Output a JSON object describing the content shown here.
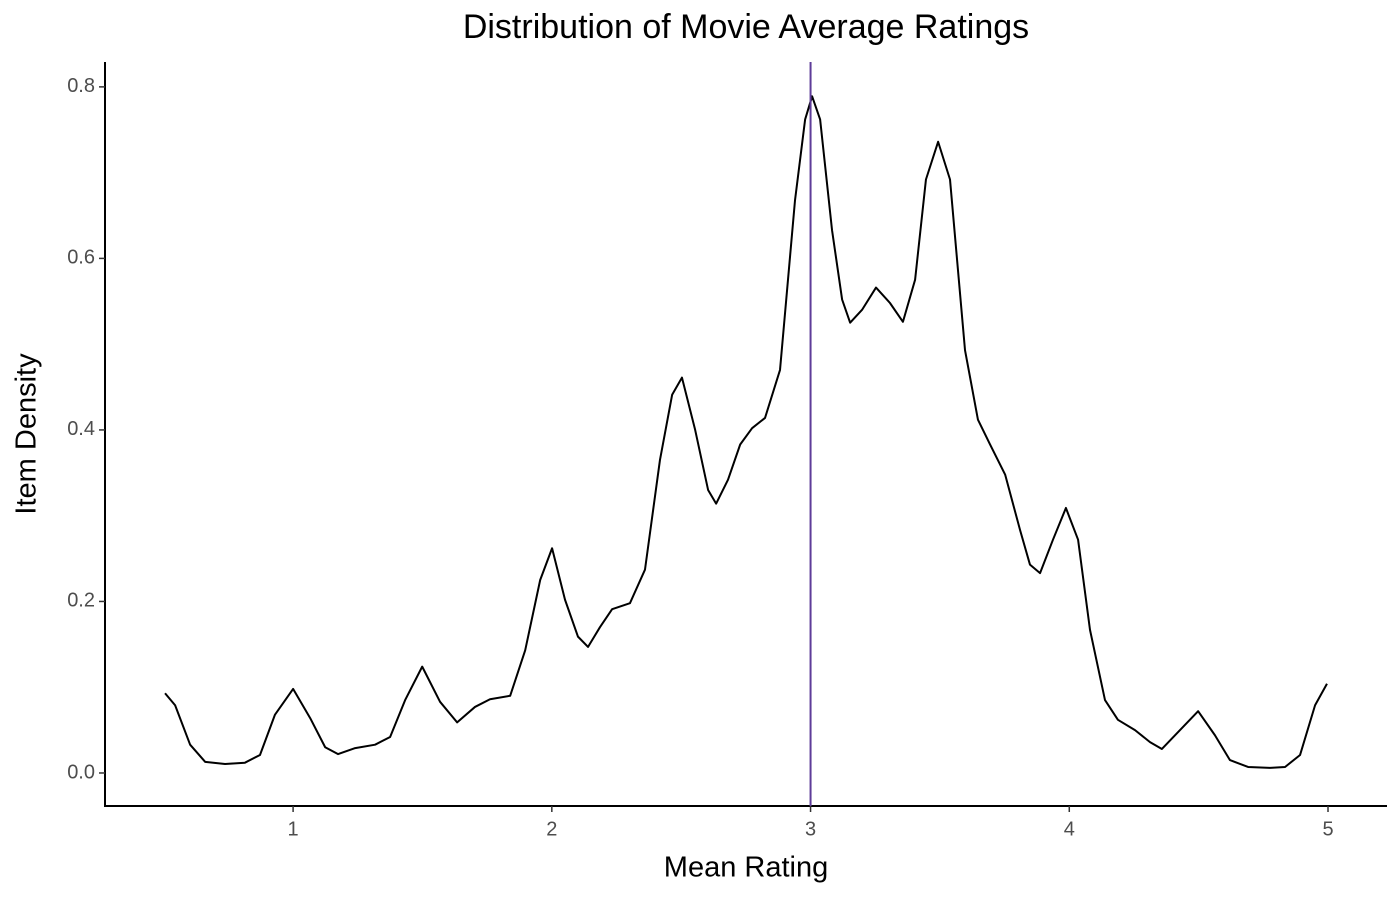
{
  "chart_data": {
    "type": "line",
    "title": "Distribution of Movie Average Ratings",
    "x_label": "Mean Rating",
    "y_label": "Item Density",
    "x": [
      0.505,
      0.544,
      0.602,
      0.66,
      0.737,
      0.814,
      0.872,
      0.93,
      1.0,
      1.066,
      1.124,
      1.174,
      1.24,
      1.317,
      1.375,
      1.433,
      1.499,
      1.568,
      1.634,
      1.703,
      1.761,
      1.839,
      1.897,
      1.955,
      2.001,
      2.051,
      2.101,
      2.14,
      2.186,
      2.233,
      2.302,
      2.36,
      2.418,
      2.465,
      2.503,
      2.554,
      2.604,
      2.635,
      2.681,
      2.728,
      2.774,
      2.824,
      2.882,
      2.94,
      2.979,
      3.006,
      3.037,
      3.083,
      3.122,
      3.153,
      3.199,
      3.253,
      3.307,
      3.357,
      3.404,
      3.446,
      3.493,
      3.539,
      3.597,
      3.647,
      3.694,
      3.752,
      3.81,
      3.848,
      3.887,
      3.937,
      3.987,
      4.034,
      4.08,
      4.138,
      4.188,
      4.254,
      4.312,
      4.358,
      4.409,
      4.498,
      4.563,
      4.621,
      4.691,
      4.776,
      4.834,
      4.892,
      4.95,
      4.996
    ],
    "series": [
      {
        "color": "#000000",
        "values": [
          0.093,
          0.079,
          0.033,
          0.013,
          0.0105,
          0.012,
          0.021,
          0.068,
          0.098,
          0.064,
          0.03,
          0.022,
          0.029,
          0.033,
          0.042,
          0.085,
          0.124,
          0.083,
          0.059,
          0.077,
          0.086,
          0.09,
          0.143,
          0.225,
          0.262,
          0.202,
          0.159,
          0.147,
          0.17,
          0.191,
          0.198,
          0.237,
          0.365,
          0.441,
          0.461,
          0.4,
          0.33,
          0.314,
          0.342,
          0.383,
          0.402,
          0.414,
          0.47,
          0.668,
          0.762,
          0.789,
          0.762,
          0.633,
          0.552,
          0.525,
          0.54,
          0.566,
          0.548,
          0.526,
          0.575,
          0.692,
          0.736,
          0.692,
          0.493,
          0.412,
          0.383,
          0.348,
          0.283,
          0.243,
          0.233,
          0.272,
          0.309,
          0.272,
          0.167,
          0.085,
          0.062,
          0.05,
          0.036,
          0.028,
          0.044,
          0.072,
          0.044,
          0.015,
          0.007,
          0.006,
          0.007,
          0.021,
          0.079,
          0.104
        ]
      }
    ],
    "vline": {
      "x": 3.0,
      "color": "#5e3c99"
    },
    "xlim": [
      0.273,
      5.228
    ],
    "xticks": [
      1,
      2,
      3,
      4,
      5
    ],
    "ylim": [
      -0.0385,
      0.829
    ],
    "yticks": [
      {
        "value": 0,
        "label": "0.0"
      },
      0.2,
      0.4,
      0.6,
      0.8
    ],
    "grid": false
  }
}
